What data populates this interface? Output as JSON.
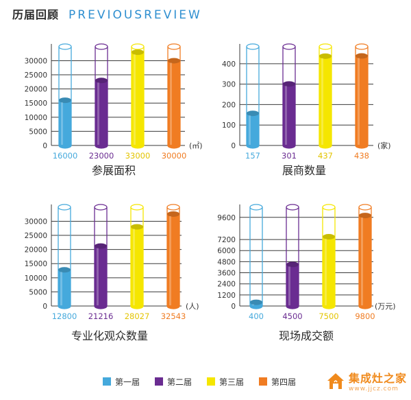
{
  "header": {
    "title": "历届回顾",
    "subtitle": "PREVIOUSREVIEW"
  },
  "legend": [
    {
      "label": "第一届",
      "color": "#45a9dc"
    },
    {
      "label": "第二届",
      "color": "#6a2c91"
    },
    {
      "label": "第三届",
      "color": "#f5e600"
    },
    {
      "label": "第四届",
      "color": "#f07c22"
    }
  ],
  "brand": {
    "name": "集成灶之家",
    "url": "www.jjcz.com"
  },
  "chart_data": [
    {
      "type": "bar",
      "title": "参展面积",
      "unit": "(㎡)",
      "categories": [
        "第一届",
        "第二届",
        "第三届",
        "第四届"
      ],
      "values": [
        16000,
        23000,
        33000,
        30000
      ],
      "value_labels": [
        "16000",
        "23000",
        "33000",
        "30000"
      ],
      "yticks": [
        0,
        5000,
        10000,
        15000,
        20000,
        25000,
        30000
      ],
      "ylim": [
        0,
        34000
      ],
      "colors": [
        "#45a9dc",
        "#6a2c91",
        "#f5e600",
        "#f07c22"
      ]
    },
    {
      "type": "bar",
      "title": "展商数量",
      "unit": "(家)",
      "categories": [
        "第一届",
        "第二届",
        "第三届",
        "第四届"
      ],
      "values": [
        157,
        301,
        437,
        438
      ],
      "value_labels": [
        "157",
        "301",
        "437",
        "438"
      ],
      "yticks": [
        0,
        100,
        200,
        300,
        400
      ],
      "ylim": [
        0,
        470
      ],
      "colors": [
        "#45a9dc",
        "#6a2c91",
        "#f5e600",
        "#f07c22"
      ]
    },
    {
      "type": "bar",
      "title": "专业化观众数量",
      "unit": "(人)",
      "categories": [
        "第一届",
        "第二届",
        "第三届",
        "第四届"
      ],
      "values": [
        12800,
        21216,
        28027,
        32543
      ],
      "value_labels": [
        "12800",
        "21216",
        "28027",
        "32543"
      ],
      "yticks": [
        0,
        5000,
        10000,
        15000,
        20000,
        25000,
        30000
      ],
      "ylim": [
        0,
        34000
      ],
      "colors": [
        "#45a9dc",
        "#6a2c91",
        "#f5e600",
        "#f07c22"
      ]
    },
    {
      "type": "bar",
      "title": "现场成交额",
      "unit": "(万元)",
      "categories": [
        "第一届",
        "第二届",
        "第三届",
        "第四届"
      ],
      "values": [
        400,
        4500,
        7500,
        9800
      ],
      "value_labels": [
        "400",
        "4500",
        "7500",
        "9800"
      ],
      "yticks": [
        0,
        1200,
        2400,
        3600,
        4800,
        6000,
        7200,
        9600
      ],
      "ylim": [
        0,
        10400
      ],
      "colors": [
        "#45a9dc",
        "#6a2c91",
        "#f5e600",
        "#f07c22"
      ]
    }
  ]
}
